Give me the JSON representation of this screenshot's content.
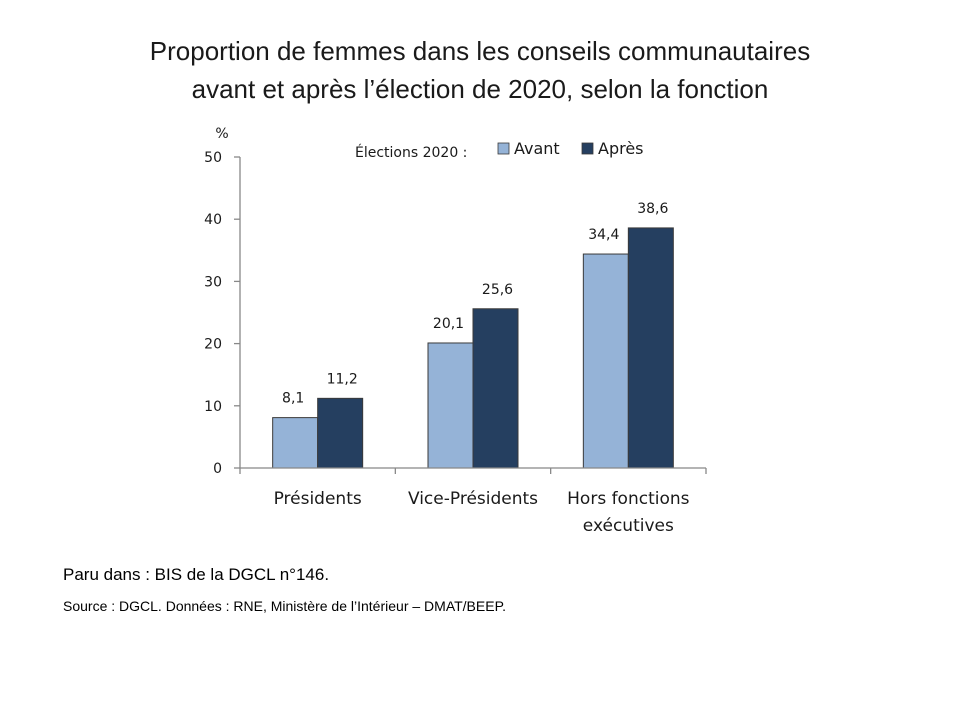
{
  "title_lines": [
    "Proportion de femmes dans les conseils communautaires",
    "avant et après l’élection de 2020, selon la fonction"
  ],
  "chart_data": {
    "type": "bar",
    "categories": [
      [
        "Présidents"
      ],
      [
        "Vice-Présidents"
      ],
      [
        "Hors fonctions",
        "exécutives"
      ]
    ],
    "series": [
      {
        "name": "Avant",
        "values": [
          8.1,
          20.1,
          34.4
        ],
        "labels": [
          "8,1",
          "20,1",
          "34,4"
        ],
        "color": "#95b3d7"
      },
      {
        "name": "Après",
        "values": [
          11.2,
          25.6,
          38.6
        ],
        "labels": [
          "11,2",
          "25,6",
          "38,6"
        ],
        "color": "#253f60"
      }
    ],
    "ylabel": "%",
    "ylim": [
      0,
      50
    ],
    "yticks": [
      0,
      10,
      20,
      30,
      40,
      50
    ],
    "legend_title": "Élections 2020 :",
    "legend_position": "top-center",
    "grid": false
  },
  "footer": {
    "published": "Paru dans : BIS de la DGCL n°146.",
    "source": "Source : DGCL. Données : RNE, Ministère de l’Intérieur – DMAT/BEEP."
  }
}
